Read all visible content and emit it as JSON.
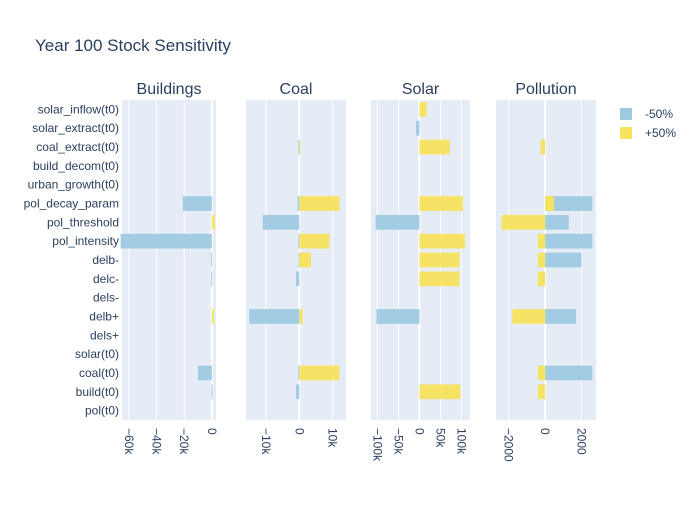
{
  "figure": {
    "title": "Year 100 Stock Sensitivity",
    "text_color": "#2a3f5f",
    "plot_bg": "#e5ecf6"
  },
  "legend": {
    "placement": "top-right",
    "entries": [
      {
        "label": "-50%",
        "color": "#9ecae1"
      },
      {
        "label": "+50%",
        "color": "#f7e35d"
      }
    ]
  },
  "chart_data": {
    "type": "bar",
    "orientation": "horizontal",
    "categories": [
      "solar_inflow(t0)",
      "solar_extract(t0)",
      "coal_extract(t0)",
      "build_decom(t0)",
      "urban_growth(t0)",
      "pol_decay_param",
      "pol_threshold",
      "pol_intensity",
      "delb-",
      "delc-",
      "dels-",
      "delb+",
      "dels+",
      "solar(t0)",
      "coal(t0)",
      "build(t0)",
      "pol(t0)"
    ],
    "subplots": [
      {
        "title": "Buildings",
        "xlim": [
          -65000,
          3000
        ],
        "ticks": [
          {
            "v": -60000,
            "label": "−60k"
          },
          {
            "v": -40000,
            "label": "−40k"
          },
          {
            "v": -20000,
            "label": "−20k"
          },
          {
            "v": 0,
            "label": "0"
          }
        ],
        "series": [
          {
            "name": "-50%",
            "values": [
              0,
              0,
              0,
              0,
              0,
              -21000,
              0,
              -66000,
              -700,
              -500,
              0,
              0,
              0,
              0,
              -10000,
              -300,
              0
            ]
          },
          {
            "name": "+50%",
            "values": [
              0,
              0,
              0,
              0,
              0,
              0,
              2000,
              0,
              0,
              0,
              0,
              1500,
              0,
              0,
              0,
              0,
              0
            ]
          }
        ]
      },
      {
        "title": "Coal",
        "xlim": [
          -16000,
          14000
        ],
        "ticks": [
          {
            "v": -10000,
            "label": "−10k"
          },
          {
            "v": 0,
            "label": "0"
          },
          {
            "v": 10000,
            "label": "10k"
          }
        ],
        "series": [
          {
            "name": "-50%",
            "values": [
              0,
              0,
              -300,
              0,
              0,
              -500,
              -11000,
              -300,
              -200,
              -1000,
              0,
              -15000,
              0,
              0,
              -300,
              -1000,
              0
            ]
          },
          {
            "name": "+50%",
            "values": [
              0,
              0,
              300,
              0,
              0,
              12000,
              0,
              9000,
              3500,
              0,
              0,
              1000,
              0,
              0,
              12000,
              0,
              0
            ]
          }
        ]
      },
      {
        "title": "Solar",
        "xlim": [
          -115000,
          120000
        ],
        "ticks": [
          {
            "v": -100000,
            "label": "−100k"
          },
          {
            "v": -50000,
            "label": "−50k"
          },
          {
            "v": 0,
            "label": "0"
          },
          {
            "v": 50000,
            "label": "50k"
          },
          {
            "v": 100000,
            "label": "100k"
          }
        ],
        "series": [
          {
            "name": "-50%",
            "values": [
              0,
              -8000,
              0,
              0,
              0,
              0,
              -104000,
              0,
              0,
              0,
              0,
              -102000,
              0,
              0,
              0,
              0,
              0
            ]
          },
          {
            "name": "+50%",
            "values": [
              17000,
              0,
              72000,
              0,
              0,
              103000,
              0,
              108000,
              95000,
              95000,
              0,
              0,
              0,
              0,
              0,
              97000,
              0
            ]
          }
        ]
      },
      {
        "title": "Pollution",
        "xlim": [
          -2700,
          2800
        ],
        "ticks": [
          {
            "v": -2000,
            "label": "−2000"
          },
          {
            "v": 0,
            "label": "0"
          },
          {
            "v": 2000,
            "label": "2000"
          }
        ],
        "series": [
          {
            "name": "-50%",
            "values": [
              0,
              0,
              -100,
              0,
              0,
              2600,
              1300,
              2600,
              2000,
              -200,
              0,
              1700,
              0,
              0,
              2600,
              -200,
              0
            ]
          },
          {
            "name": "+50%",
            "values": [
              0,
              0,
              -250,
              0,
              0,
              500,
              -2400,
              -400,
              -400,
              -400,
              0,
              -1800,
              0,
              0,
              -400,
              -400,
              0
            ]
          }
        ]
      }
    ]
  }
}
